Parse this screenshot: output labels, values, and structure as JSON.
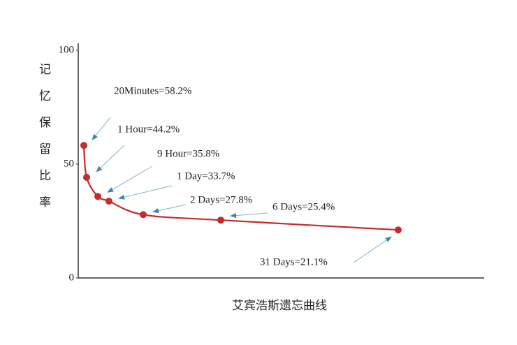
{
  "chart_data": {
    "type": "line",
    "x_label": "艾宾浩斯遗忘曲线",
    "y_label": "记忆保留比率",
    "categories": [
      null,
      null,
      null,
      null,
      null,
      null,
      null
    ],
    "values": [
      58.2,
      44.2,
      35.8,
      33.7,
      27.8,
      25.4,
      21.1
    ],
    "value_labels": [
      "20Minutes=58.2%",
      "1 Hour=44.2%",
      "9 Hour=35.8%",
      "1 Day=33.7%",
      "2 Days=27.8%",
      "6 Days=25.4%",
      "31 Days=21.1%"
    ],
    "color": "#c62a2a",
    "ylim": [
      0,
      100
    ],
    "yticks": [
      0,
      50,
      100
    ]
  }
}
